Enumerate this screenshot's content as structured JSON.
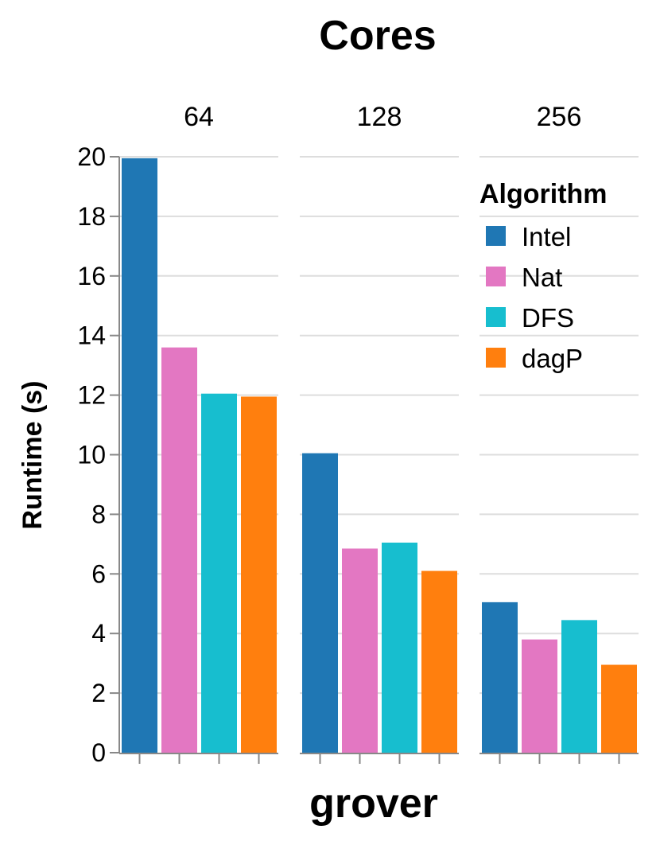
{
  "chart_data": {
    "type": "bar",
    "title": "Cores",
    "xlabel": "grover",
    "ylabel": "Runtime (s)",
    "ylim": [
      0,
      20
    ],
    "yticks": [
      0,
      2,
      4,
      6,
      8,
      10,
      12,
      14,
      16,
      18,
      20
    ],
    "grid": true,
    "facets": [
      "64",
      "128",
      "256"
    ],
    "legend": {
      "title": "Algorithm",
      "placement": "top-right"
    },
    "series": [
      {
        "name": "Intel",
        "color": "#1f77b4",
        "values": [
          19.95,
          10.05,
          5.05
        ]
      },
      {
        "name": "Nat",
        "color": "#e377c2",
        "values": [
          13.6,
          6.85,
          3.8
        ]
      },
      {
        "name": "DFS",
        "color": "#17becf",
        "values": [
          12.05,
          7.05,
          4.45
        ]
      },
      {
        "name": "dagP",
        "color": "#ff7f0e",
        "values": [
          11.95,
          6.1,
          2.95
        ]
      }
    ]
  }
}
